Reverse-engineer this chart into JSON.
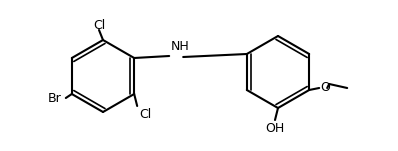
{
  "bg_color": "#ffffff",
  "line_color": "#000000",
  "line_width": 1.5,
  "font_size": 9,
  "labels": {
    "Cl_top": "Cl",
    "Cl_bottom": "Cl",
    "Br": "Br",
    "NH": "NH",
    "OH": "OH",
    "O": "O"
  }
}
